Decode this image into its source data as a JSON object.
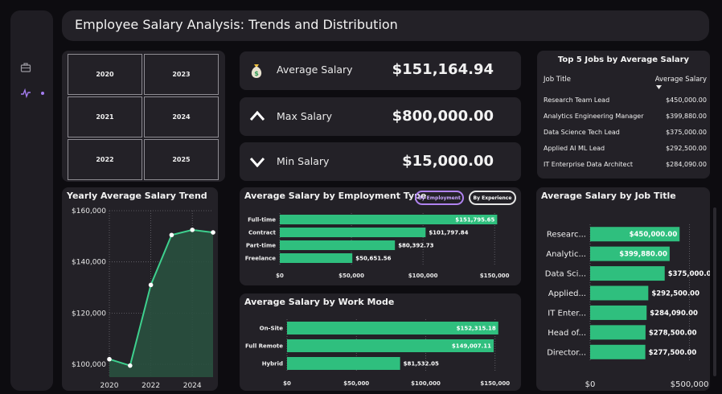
{
  "header": {
    "title": "Employee Salary Analysis: Trends and Distribution"
  },
  "sidebar": {
    "icons": [
      "briefcase-icon",
      "activity-icon"
    ]
  },
  "years": [
    "2020",
    "2023",
    "2021",
    "2024",
    "2022",
    "2025"
  ],
  "kpis": [
    {
      "label": "Average Salary",
      "value": "$151,164.94",
      "icon": "money-bag-icon"
    },
    {
      "label": "Max Salary",
      "value": "$800,000.00",
      "icon": "chevron-up-icon"
    },
    {
      "label": "Min Salary",
      "value": "$15,000.00",
      "icon": "chevron-down-icon"
    }
  ],
  "top_jobs": {
    "title": "Top 5 Jobs by Average Salary",
    "col1": "Job Title",
    "col2": "Average Salary",
    "rows": [
      {
        "job": "Research Team Lead",
        "salary": "$450,000.00"
      },
      {
        "job": "Analytics Engineering Manager",
        "salary": "$399,880.00"
      },
      {
        "job": "Data Science Tech Lead",
        "salary": "$375,000.00"
      },
      {
        "job": "Applied AI ML Lead",
        "salary": "$292,500.00"
      },
      {
        "job": "IT Enterprise Data Architect",
        "salary": "$284,090.00"
      }
    ]
  },
  "chips": {
    "employment": "By Employment",
    "experience": "By Experience"
  },
  "colors": {
    "accent": "#2fbf7e",
    "panel": "#232127",
    "chip_purple": "#b083f0",
    "area": "#29503f"
  },
  "chart_data": [
    {
      "id": "trend",
      "type": "area",
      "title": "Yearly Average Salary Trend",
      "x": [
        2020,
        2021,
        2022,
        2023,
        2024,
        2025
      ],
      "values": [
        102000,
        99500,
        131000,
        150500,
        152500,
        151500
      ],
      "xticks": [
        "2020",
        "2022",
        "2024"
      ],
      "yticks": [
        "$100,000",
        "$120,000",
        "$140,000",
        "$160,000"
      ],
      "ytick_values": [
        100000,
        120000,
        140000,
        160000
      ],
      "ylim": [
        95000,
        160000
      ]
    },
    {
      "id": "employment",
      "type": "bar",
      "title": "Average Salary by Employment Type",
      "categories": [
        "Full-time",
        "Contract",
        "Part-time",
        "Freelance"
      ],
      "values": [
        151795.65,
        101797.84,
        80392.73,
        50651.56
      ],
      "labels": [
        "$151,795.65",
        "$101,797.84",
        "$80,392.73",
        "$50,651.56"
      ],
      "xticks": [
        "$0",
        "$50,000",
        "$100,000",
        "$150,000"
      ],
      "xlim": [
        0,
        160000
      ]
    },
    {
      "id": "workmode",
      "type": "bar",
      "title": "Average Salary by Work Mode",
      "categories": [
        "On-Site",
        "Full Remote",
        "Hybrid"
      ],
      "values": [
        152315.18,
        149007.11,
        81532.05
      ],
      "labels": [
        "$152,315.18",
        "$149,007.11",
        "$81,532.05"
      ],
      "xticks": [
        "$0",
        "$50,000",
        "$100,000",
        "$150,000"
      ],
      "xlim": [
        0,
        160000
      ]
    },
    {
      "id": "jobtitle",
      "type": "bar",
      "title": "Average Salary by Job Title",
      "categories": [
        "Researc...",
        "Analytic...",
        "Data Sci...",
        "Applied...",
        "IT Enter...",
        "Head of...",
        "Director..."
      ],
      "values": [
        450000,
        399880,
        375000,
        292500,
        284090,
        278500,
        277500
      ],
      "labels": [
        "$450,000.00",
        "$399,880.00",
        "$375,000.00",
        "$292,500.00",
        "$284,090.00",
        "$278,500.00",
        "$277,500.00"
      ],
      "xticks": [
        "$0",
        "$500,000"
      ],
      "xlim": [
        0,
        550000
      ]
    }
  ]
}
